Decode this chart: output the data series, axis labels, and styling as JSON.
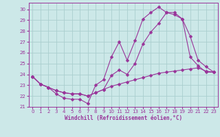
{
  "xlabel": "Windchill (Refroidissement éolien,°C)",
  "bg_color": "#cce8e8",
  "grid_color": "#aacece",
  "line_color": "#993399",
  "xlim": [
    -0.5,
    23.5
  ],
  "ylim": [
    21.0,
    30.6
  ],
  "yticks": [
    21,
    22,
    23,
    24,
    25,
    26,
    27,
    28,
    29,
    30
  ],
  "xticks": [
    0,
    1,
    2,
    3,
    4,
    5,
    6,
    7,
    8,
    9,
    10,
    11,
    12,
    13,
    14,
    15,
    16,
    17,
    18,
    19,
    20,
    21,
    22,
    23
  ],
  "line1_x": [
    0,
    1,
    2,
    3,
    4,
    5,
    6,
    7,
    8,
    9,
    10,
    11,
    12,
    13,
    14,
    15,
    16,
    17,
    18,
    19,
    20,
    21,
    22,
    23
  ],
  "line1_y": [
    23.8,
    23.1,
    22.8,
    22.2,
    21.8,
    21.7,
    21.7,
    21.3,
    23.0,
    23.5,
    25.6,
    27.0,
    25.3,
    27.1,
    29.1,
    29.7,
    30.2,
    29.7,
    29.7,
    29.1,
    25.6,
    24.8,
    24.2,
    24.2
  ],
  "line2_x": [
    0,
    1,
    2,
    3,
    4,
    5,
    6,
    7,
    8,
    9,
    10,
    11,
    12,
    13,
    14,
    15,
    16,
    17,
    18,
    19,
    20,
    21,
    22,
    23
  ],
  "line2_y": [
    23.8,
    23.1,
    22.8,
    22.5,
    22.3,
    22.2,
    22.2,
    22.0,
    22.3,
    22.6,
    22.9,
    23.1,
    23.3,
    23.5,
    23.7,
    23.9,
    24.1,
    24.2,
    24.3,
    24.4,
    24.5,
    24.6,
    24.3,
    24.2
  ],
  "line3_x": [
    0,
    1,
    2,
    3,
    4,
    5,
    6,
    7,
    8,
    9,
    10,
    11,
    12,
    13,
    14,
    15,
    16,
    17,
    18,
    19,
    20,
    21,
    22,
    23
  ],
  "line3_y": [
    23.8,
    23.1,
    22.8,
    22.5,
    22.3,
    22.2,
    22.2,
    22.0,
    22.3,
    22.6,
    23.9,
    24.4,
    24.0,
    25.0,
    26.8,
    27.9,
    28.7,
    29.7,
    29.5,
    29.1,
    27.5,
    25.3,
    24.7,
    24.2
  ]
}
